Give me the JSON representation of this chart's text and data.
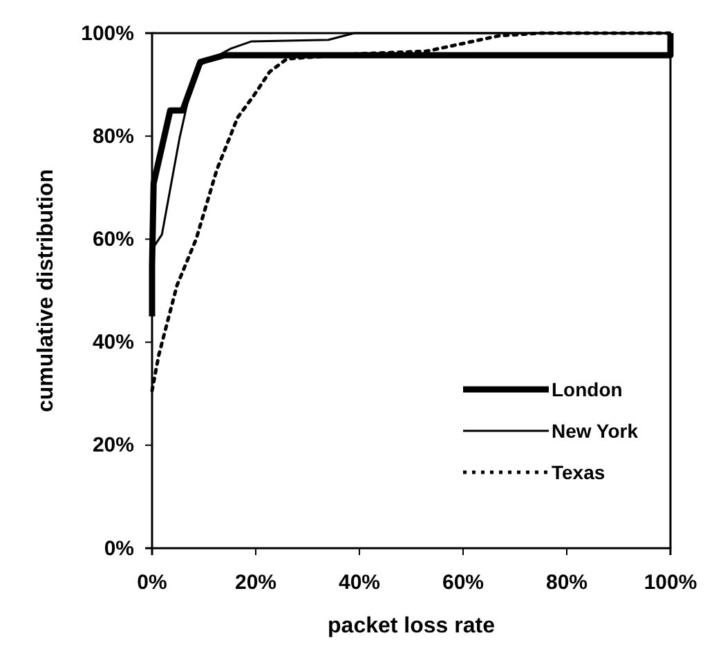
{
  "chart_data": {
    "type": "line",
    "xlabel": "packet loss rate",
    "ylabel": "cumulative distribution",
    "xlim": [
      0,
      100
    ],
    "ylim": [
      0,
      100
    ],
    "xticks": [
      {
        "value": 0,
        "label": "0%"
      },
      {
        "value": 20,
        "label": "20%"
      },
      {
        "value": 40,
        "label": "40%"
      },
      {
        "value": 60,
        "label": "60%"
      },
      {
        "value": 80,
        "label": "80%"
      },
      {
        "value": 100,
        "label": "100%"
      }
    ],
    "yticks": [
      {
        "value": 0,
        "label": "0%"
      },
      {
        "value": 20,
        "label": "20%"
      },
      {
        "value": 40,
        "label": "40%"
      },
      {
        "value": 60,
        "label": "60%"
      },
      {
        "value": 80,
        "label": "80%"
      },
      {
        "value": 100,
        "label": "100%"
      }
    ],
    "grid": false,
    "legend": "bottom right",
    "marker": "none",
    "series": [
      {
        "name": "London",
        "color": "#000000",
        "line_style": "solid",
        "x": [
          0,
          0,
          0.3,
          3.5,
          5.9,
          9.3,
          13.9,
          100,
          100
        ],
        "values": [
          45,
          55,
          70.8,
          85,
          85,
          94.4,
          95.7,
          95.7,
          100
        ]
      },
      {
        "name": "New York",
        "color": "#000000",
        "line_style": "solid",
        "x": [
          0,
          1.9,
          5.3,
          7.5,
          9.3,
          15.2,
          19.2,
          34,
          39,
          100
        ],
        "values": [
          58,
          60.9,
          79.6,
          89.5,
          93.8,
          97,
          98.4,
          98.7,
          100,
          100
        ]
      },
      {
        "name": "Texas",
        "color": "#000000",
        "line_style": "dotted",
        "x": [
          0,
          1.3,
          4.8,
          8.5,
          12.5,
          16.5,
          19.5,
          22.7,
          26,
          40,
          53,
          67,
          75,
          100
        ],
        "values": [
          30.6,
          37.5,
          51,
          60,
          73.5,
          83.6,
          87.7,
          92.5,
          95,
          96,
          96.5,
          99.5,
          100,
          100
        ]
      }
    ]
  }
}
